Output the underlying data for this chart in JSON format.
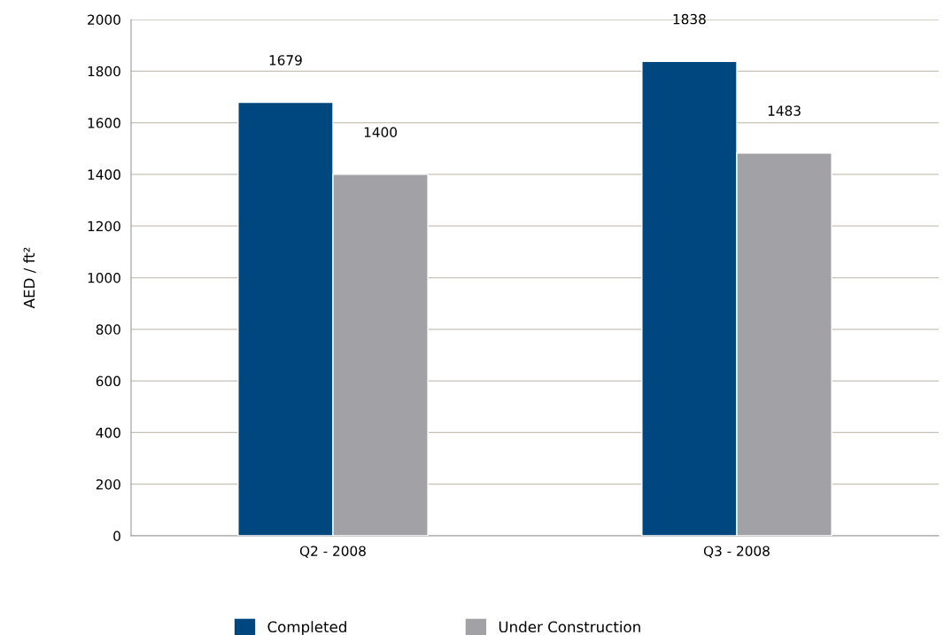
{
  "chart_data": {
    "type": "bar",
    "ylabel": "AED / ft²",
    "categories": [
      "Q2 - 2008",
      "Q3 - 2008"
    ],
    "series": [
      {
        "name": "Completed",
        "color": "#00467f",
        "values": [
          1679,
          1838
        ]
      },
      {
        "name": "Under Construction",
        "color": "#a2a1a6",
        "values": [
          1400,
          1483
        ]
      }
    ],
    "ylim": [
      0,
      2000
    ],
    "yticks": [
      0,
      200,
      400,
      600,
      800,
      1000,
      1200,
      1400,
      1600,
      1800,
      2000
    ],
    "grid": "y",
    "legend": "bottom",
    "data_labels": true
  }
}
